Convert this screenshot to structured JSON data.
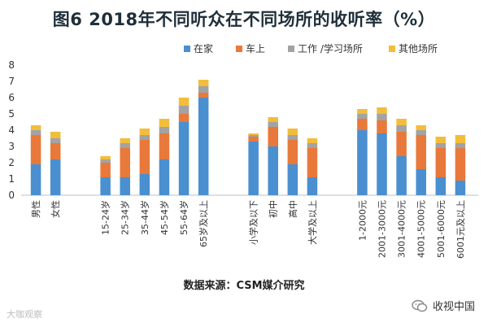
{
  "chart_data": {
    "type": "bar",
    "stacked": true,
    "title": "图6 2018年不同听众在不同场所的收听率（%）",
    "source": "数据来源：CSM媒介研究",
    "ylim": [
      0,
      8
    ],
    "yticks": [
      0,
      1,
      2,
      3,
      4,
      5,
      6,
      7,
      8
    ],
    "grid": false,
    "legend_position": "top",
    "categories": [
      "男性",
      "女性",
      "15-24岁",
      "25-34岁",
      "35-44岁",
      "45-54岁",
      "55-64岁",
      "65岁及以上",
      "小学及以下",
      "初中",
      "高中",
      "大学及以上",
      "1-2000元",
      "2001-3000元",
      "3001-4000元",
      "4001-5000元",
      "5001-6000元",
      "6001元及以上"
    ],
    "groups": [
      [
        0,
        1
      ],
      [
        2,
        3,
        4,
        5,
        6,
        7
      ],
      [
        8,
        9,
        10,
        11
      ],
      [
        12,
        13,
        14,
        15,
        16,
        17
      ]
    ],
    "series": [
      {
        "name": "在家",
        "color": "#4a8fd0",
        "values": [
          1.9,
          2.2,
          1.1,
          1.1,
          1.3,
          2.2,
          4.5,
          6.0,
          3.3,
          3.0,
          1.9,
          1.1,
          4.0,
          3.8,
          2.4,
          1.6,
          1.1,
          0.9
        ]
      },
      {
        "name": "车上",
        "color": "#e8793b",
        "values": [
          1.8,
          1.0,
          0.9,
          1.8,
          2.1,
          1.6,
          0.5,
          0.3,
          0.3,
          1.2,
          1.5,
          1.8,
          0.7,
          0.8,
          1.5,
          2.1,
          1.8,
          2.0
        ]
      },
      {
        "name": "工作 /学习场所",
        "color": "#a3a3a3",
        "values": [
          0.3,
          0.3,
          0.2,
          0.3,
          0.3,
          0.4,
          0.5,
          0.4,
          0.1,
          0.3,
          0.3,
          0.3,
          0.3,
          0.4,
          0.4,
          0.3,
          0.3,
          0.3
        ]
      },
      {
        "name": "其他场所",
        "color": "#f3bd3b",
        "values": [
          0.3,
          0.4,
          0.2,
          0.3,
          0.4,
          0.5,
          0.5,
          0.4,
          0.1,
          0.3,
          0.4,
          0.3,
          0.3,
          0.4,
          0.4,
          0.3,
          0.4,
          0.5
        ]
      }
    ]
  },
  "watermark_left": "大咖观察",
  "watermark_right": "收视中国"
}
